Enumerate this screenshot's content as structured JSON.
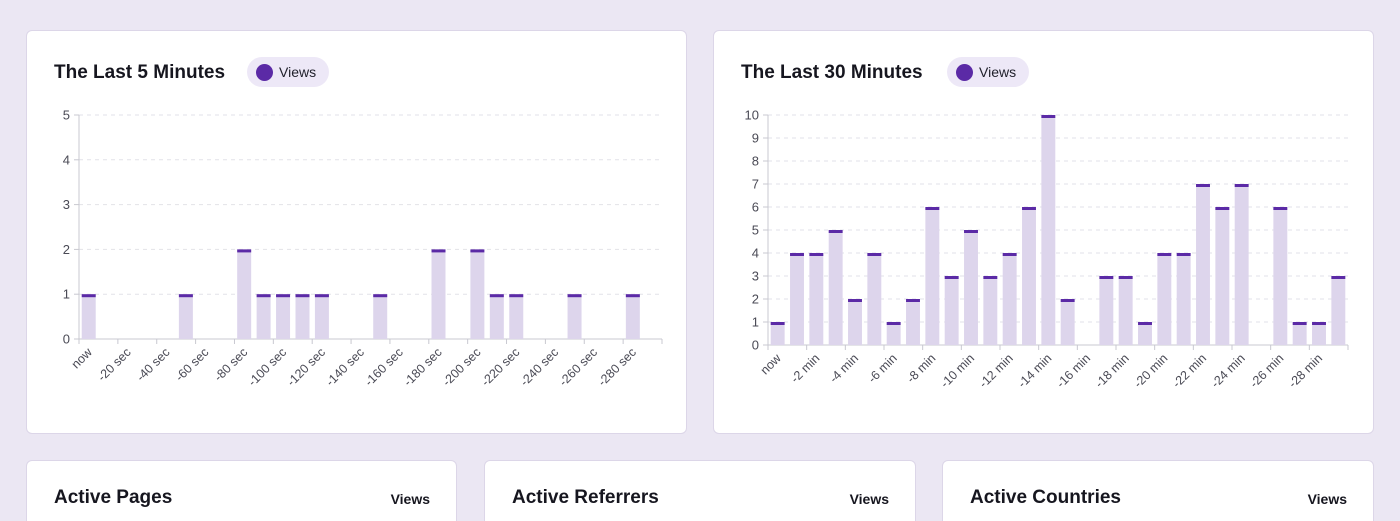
{
  "colors": {
    "bar_fill": "#ddd5ec",
    "bar_cap": "#5b2aa6",
    "grid": "#e2e2e8",
    "axis": "#c8c8d0",
    "tick_text": "#4a4a55"
  },
  "chart_data": [
    {
      "type": "bar",
      "title": "The Last 5 Minutes",
      "legend": "Views",
      "ylim": [
        0,
        5
      ],
      "yticks": [
        0,
        1,
        2,
        3,
        4,
        5
      ],
      "grid": true,
      "categories": [
        "now",
        "-10 sec",
        "-20 sec",
        "-30 sec",
        "-40 sec",
        "-50 sec",
        "-60 sec",
        "-70 sec",
        "-80 sec",
        "-90 sec",
        "-100 sec",
        "-110 sec",
        "-120 sec",
        "-130 sec",
        "-140 sec",
        "-150 sec",
        "-160 sec",
        "-170 sec",
        "-180 sec",
        "-190 sec",
        "-200 sec",
        "-210 sec",
        "-220 sec",
        "-230 sec",
        "-240 sec",
        "-250 sec",
        "-260 sec",
        "-270 sec",
        "-280 sec",
        "-290 sec"
      ],
      "xtick_labels": [
        "now",
        "-20 sec",
        "-40 sec",
        "-60 sec",
        "-80 sec",
        "-100 sec",
        "-120 sec",
        "-140 sec",
        "-160 sec",
        "-180 sec",
        "-200 sec",
        "-220 sec",
        "-240 sec",
        "-260 sec",
        "-280 sec"
      ],
      "series": [
        {
          "name": "Views",
          "values": [
            1,
            0,
            0,
            0,
            0,
            1,
            0,
            0,
            2,
            1,
            1,
            1,
            1,
            0,
            0,
            1,
            0,
            0,
            2,
            0,
            2,
            1,
            1,
            0,
            0,
            1,
            0,
            0,
            1,
            0
          ]
        }
      ]
    },
    {
      "type": "bar",
      "title": "The Last 30 Minutes",
      "legend": "Views",
      "ylim": [
        0,
        10
      ],
      "yticks": [
        0,
        1,
        2,
        3,
        4,
        5,
        6,
        7,
        8,
        9,
        10
      ],
      "grid": true,
      "categories": [
        "now",
        "-1 min",
        "-2 min",
        "-3 min",
        "-4 min",
        "-5 min",
        "-6 min",
        "-7 min",
        "-8 min",
        "-9 min",
        "-10 min",
        "-11 min",
        "-12 min",
        "-13 min",
        "-14 min",
        "-15 min",
        "-16 min",
        "-17 min",
        "-18 min",
        "-19 min",
        "-20 min",
        "-21 min",
        "-22 min",
        "-23 min",
        "-24 min",
        "-25 min",
        "-26 min",
        "-27 min",
        "-28 min",
        "-29 min"
      ],
      "xtick_labels": [
        "now",
        "-2 min",
        "-4 min",
        "-6 min",
        "-8 min",
        "-10 min",
        "-12 min",
        "-14 min",
        "-16 min",
        "-18 min",
        "-20 min",
        "-22 min",
        "-24 min",
        "-26 min",
        "-28 min"
      ],
      "series": [
        {
          "name": "Views",
          "values": [
            1,
            4,
            4,
            5,
            2,
            4,
            1,
            2,
            6,
            3,
            5,
            3,
            4,
            6,
            10,
            2,
            0,
            3,
            3,
            1,
            4,
            4,
            7,
            6,
            7,
            0,
            6,
            1,
            1,
            3
          ]
        }
      ]
    }
  ],
  "panels": {
    "pages": {
      "title": "Active Pages",
      "column": "Views"
    },
    "referrers": {
      "title": "Active Referrers",
      "column": "Views"
    },
    "countries": {
      "title": "Active Countries",
      "column": "Views"
    }
  }
}
